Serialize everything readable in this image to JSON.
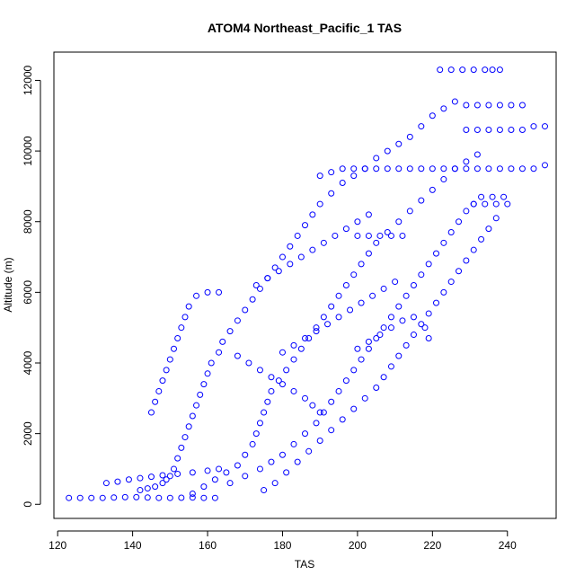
{
  "chart_data": {
    "type": "scatter",
    "title": "ATOM4 Northeast_Pacific_1 TAS",
    "xlabel": "TAS",
    "ylabel": "Altitude (m)",
    "xlim": [
      119,
      253
    ],
    "ylim": [
      -400,
      12800
    ],
    "x_ticks": [
      120,
      140,
      160,
      180,
      200,
      220,
      240
    ],
    "y_ticks": [
      0,
      2000,
      4000,
      6000,
      8000,
      10000,
      12000
    ],
    "grid": false,
    "marker": "open-circle",
    "color": "#0000ff",
    "series": [
      {
        "points": [
          [
            123,
            180
          ],
          [
            126,
            180
          ],
          [
            129,
            180
          ],
          [
            132,
            180
          ],
          [
            135,
            190
          ],
          [
            138,
            200
          ],
          [
            141,
            200
          ],
          [
            144,
            190
          ],
          [
            147,
            180
          ],
          [
            150,
            180
          ],
          [
            153,
            185
          ],
          [
            156,
            190
          ],
          [
            159,
            180
          ],
          [
            162,
            180
          ],
          [
            133,
            600
          ],
          [
            136,
            640
          ],
          [
            139,
            700
          ],
          [
            142,
            740
          ],
          [
            145,
            780
          ],
          [
            148,
            820
          ],
          [
            152,
            860
          ],
          [
            156,
            900
          ],
          [
            160,
            950
          ],
          [
            163,
            1000
          ],
          [
            142,
            400
          ],
          [
            144,
            450
          ],
          [
            146,
            500
          ],
          [
            148,
            600
          ],
          [
            149,
            700
          ],
          [
            150,
            800
          ],
          [
            151,
            1000
          ],
          [
            152,
            1300
          ],
          [
            153,
            1600
          ],
          [
            154,
            1900
          ],
          [
            155,
            2200
          ],
          [
            156,
            2500
          ],
          [
            157,
            2800
          ],
          [
            158,
            3100
          ],
          [
            159,
            3400
          ],
          [
            160,
            3700
          ],
          [
            161,
            4000
          ],
          [
            163,
            4300
          ],
          [
            164,
            4600
          ],
          [
            166,
            4900
          ],
          [
            168,
            5200
          ],
          [
            170,
            5500
          ],
          [
            172,
            5800
          ],
          [
            174,
            6100
          ],
          [
            176,
            6400
          ],
          [
            178,
            6700
          ],
          [
            180,
            7000
          ],
          [
            182,
            7300
          ],
          [
            184,
            7600
          ],
          [
            186,
            7900
          ],
          [
            188,
            8200
          ],
          [
            190,
            8500
          ],
          [
            193,
            8800
          ],
          [
            196,
            9100
          ],
          [
            199,
            9300
          ],
          [
            202,
            9500
          ],
          [
            205,
            9800
          ],
          [
            208,
            10000
          ],
          [
            211,
            10200
          ],
          [
            214,
            10400
          ],
          [
            217,
            10700
          ],
          [
            220,
            11000
          ],
          [
            223,
            11200
          ],
          [
            226,
            11400
          ],
          [
            145,
            2600
          ],
          [
            146,
            2900
          ],
          [
            147,
            3200
          ],
          [
            148,
            3500
          ],
          [
            149,
            3800
          ],
          [
            150,
            4100
          ],
          [
            151,
            4400
          ],
          [
            152,
            4700
          ],
          [
            153,
            5000
          ],
          [
            154,
            5300
          ],
          [
            155,
            5600
          ],
          [
            157,
            5900
          ],
          [
            160,
            6000
          ],
          [
            163,
            6000
          ],
          [
            156,
            300
          ],
          [
            159,
            500
          ],
          [
            162,
            700
          ],
          [
            165,
            900
          ],
          [
            168,
            1100
          ],
          [
            170,
            1400
          ],
          [
            172,
            1700
          ],
          [
            173,
            2000
          ],
          [
            174,
            2300
          ],
          [
            175,
            2600
          ],
          [
            176,
            2900
          ],
          [
            177,
            3200
          ],
          [
            179,
            3500
          ],
          [
            181,
            3800
          ],
          [
            183,
            4100
          ],
          [
            185,
            4400
          ],
          [
            187,
            4700
          ],
          [
            189,
            5000
          ],
          [
            191,
            5300
          ],
          [
            193,
            5600
          ],
          [
            195,
            5900
          ],
          [
            197,
            6200
          ],
          [
            199,
            6500
          ],
          [
            201,
            6800
          ],
          [
            203,
            7100
          ],
          [
            205,
            7400
          ],
          [
            208,
            7700
          ],
          [
            211,
            8000
          ],
          [
            214,
            8300
          ],
          [
            217,
            8600
          ],
          [
            220,
            8900
          ],
          [
            223,
            9200
          ],
          [
            226,
            9500
          ],
          [
            229,
            9700
          ],
          [
            232,
            9900
          ],
          [
            166,
            600
          ],
          [
            170,
            800
          ],
          [
            174,
            1000
          ],
          [
            177,
            1200
          ],
          [
            180,
            1400
          ],
          [
            183,
            1700
          ],
          [
            186,
            2000
          ],
          [
            189,
            2300
          ],
          [
            191,
            2600
          ],
          [
            193,
            2900
          ],
          [
            195,
            3200
          ],
          [
            197,
            3500
          ],
          [
            199,
            3800
          ],
          [
            201,
            4100
          ],
          [
            203,
            4400
          ],
          [
            205,
            4700
          ],
          [
            207,
            5000
          ],
          [
            209,
            5300
          ],
          [
            211,
            5600
          ],
          [
            213,
            5900
          ],
          [
            215,
            6200
          ],
          [
            217,
            6500
          ],
          [
            219,
            6800
          ],
          [
            221,
            7100
          ],
          [
            223,
            7400
          ],
          [
            225,
            7700
          ],
          [
            227,
            8000
          ],
          [
            229,
            8300
          ],
          [
            231,
            8500
          ],
          [
            175,
            400
          ],
          [
            178,
            600
          ],
          [
            181,
            900
          ],
          [
            184,
            1200
          ],
          [
            187,
            1500
          ],
          [
            190,
            1800
          ],
          [
            193,
            2100
          ],
          [
            196,
            2400
          ],
          [
            199,
            2700
          ],
          [
            202,
            3000
          ],
          [
            205,
            3300
          ],
          [
            207,
            3600
          ],
          [
            209,
            3900
          ],
          [
            211,
            4200
          ],
          [
            213,
            4500
          ],
          [
            215,
            4800
          ],
          [
            217,
            5100
          ],
          [
            219,
            5400
          ],
          [
            221,
            5700
          ],
          [
            223,
            6000
          ],
          [
            225,
            6300
          ],
          [
            227,
            6600
          ],
          [
            229,
            6900
          ],
          [
            231,
            7200
          ],
          [
            233,
            7500
          ],
          [
            235,
            7800
          ],
          [
            237,
            8100
          ],
          [
            168,
            4200
          ],
          [
            171,
            4000
          ],
          [
            174,
            3800
          ],
          [
            177,
            3600
          ],
          [
            180,
            3400
          ],
          [
            183,
            3200
          ],
          [
            186,
            3000
          ],
          [
            188,
            2800
          ],
          [
            190,
            2600
          ],
          [
            180,
            4300
          ],
          [
            183,
            4500
          ],
          [
            186,
            4700
          ],
          [
            189,
            4900
          ],
          [
            192,
            5100
          ],
          [
            195,
            5300
          ],
          [
            198,
            5500
          ],
          [
            201,
            5700
          ],
          [
            204,
            5900
          ],
          [
            207,
            6100
          ],
          [
            210,
            6300
          ],
          [
            200,
            4400
          ],
          [
            203,
            4600
          ],
          [
            206,
            4800
          ],
          [
            209,
            5000
          ],
          [
            212,
            5200
          ],
          [
            215,
            5300
          ],
          [
            218,
            5000
          ],
          [
            219,
            4700
          ],
          [
            173,
            6200
          ],
          [
            176,
            6400
          ],
          [
            179,
            6600
          ],
          [
            182,
            6800
          ],
          [
            185,
            7000
          ],
          [
            188,
            7200
          ],
          [
            191,
            7400
          ],
          [
            194,
            7600
          ],
          [
            197,
            7800
          ],
          [
            200,
            8000
          ],
          [
            203,
            8200
          ],
          [
            200,
            7600
          ],
          [
            203,
            7600
          ],
          [
            206,
            7600
          ],
          [
            209,
            7600
          ],
          [
            212,
            7600
          ],
          [
            190,
            9300
          ],
          [
            193,
            9400
          ],
          [
            196,
            9500
          ],
          [
            199,
            9500
          ],
          [
            202,
            9500
          ],
          [
            205,
            9500
          ],
          [
            208,
            9500
          ],
          [
            211,
            9500
          ],
          [
            214,
            9500
          ],
          [
            217,
            9500
          ],
          [
            220,
            9500
          ],
          [
            223,
            9500
          ],
          [
            226,
            9500
          ],
          [
            229,
            9500
          ],
          [
            232,
            9500
          ],
          [
            235,
            9500
          ],
          [
            238,
            9500
          ],
          [
            241,
            9500
          ],
          [
            244,
            9500
          ],
          [
            247,
            9500
          ],
          [
            250,
            9600
          ],
          [
            229,
            10600
          ],
          [
            232,
            10600
          ],
          [
            235,
            10600
          ],
          [
            238,
            10600
          ],
          [
            241,
            10600
          ],
          [
            244,
            10600
          ],
          [
            247,
            10700
          ],
          [
            250,
            10700
          ],
          [
            229,
            11300
          ],
          [
            232,
            11300
          ],
          [
            235,
            11300
          ],
          [
            238,
            11300
          ],
          [
            241,
            11300
          ],
          [
            244,
            11300
          ],
          [
            222,
            12300
          ],
          [
            225,
            12300
          ],
          [
            228,
            12300
          ],
          [
            231,
            12300
          ],
          [
            234,
            12300
          ],
          [
            236,
            12300
          ],
          [
            238,
            12300
          ],
          [
            231,
            8500
          ],
          [
            234,
            8500
          ],
          [
            237,
            8500
          ],
          [
            240,
            8500
          ],
          [
            233,
            8700
          ],
          [
            236,
            8700
          ],
          [
            239,
            8700
          ]
        ]
      }
    ]
  }
}
